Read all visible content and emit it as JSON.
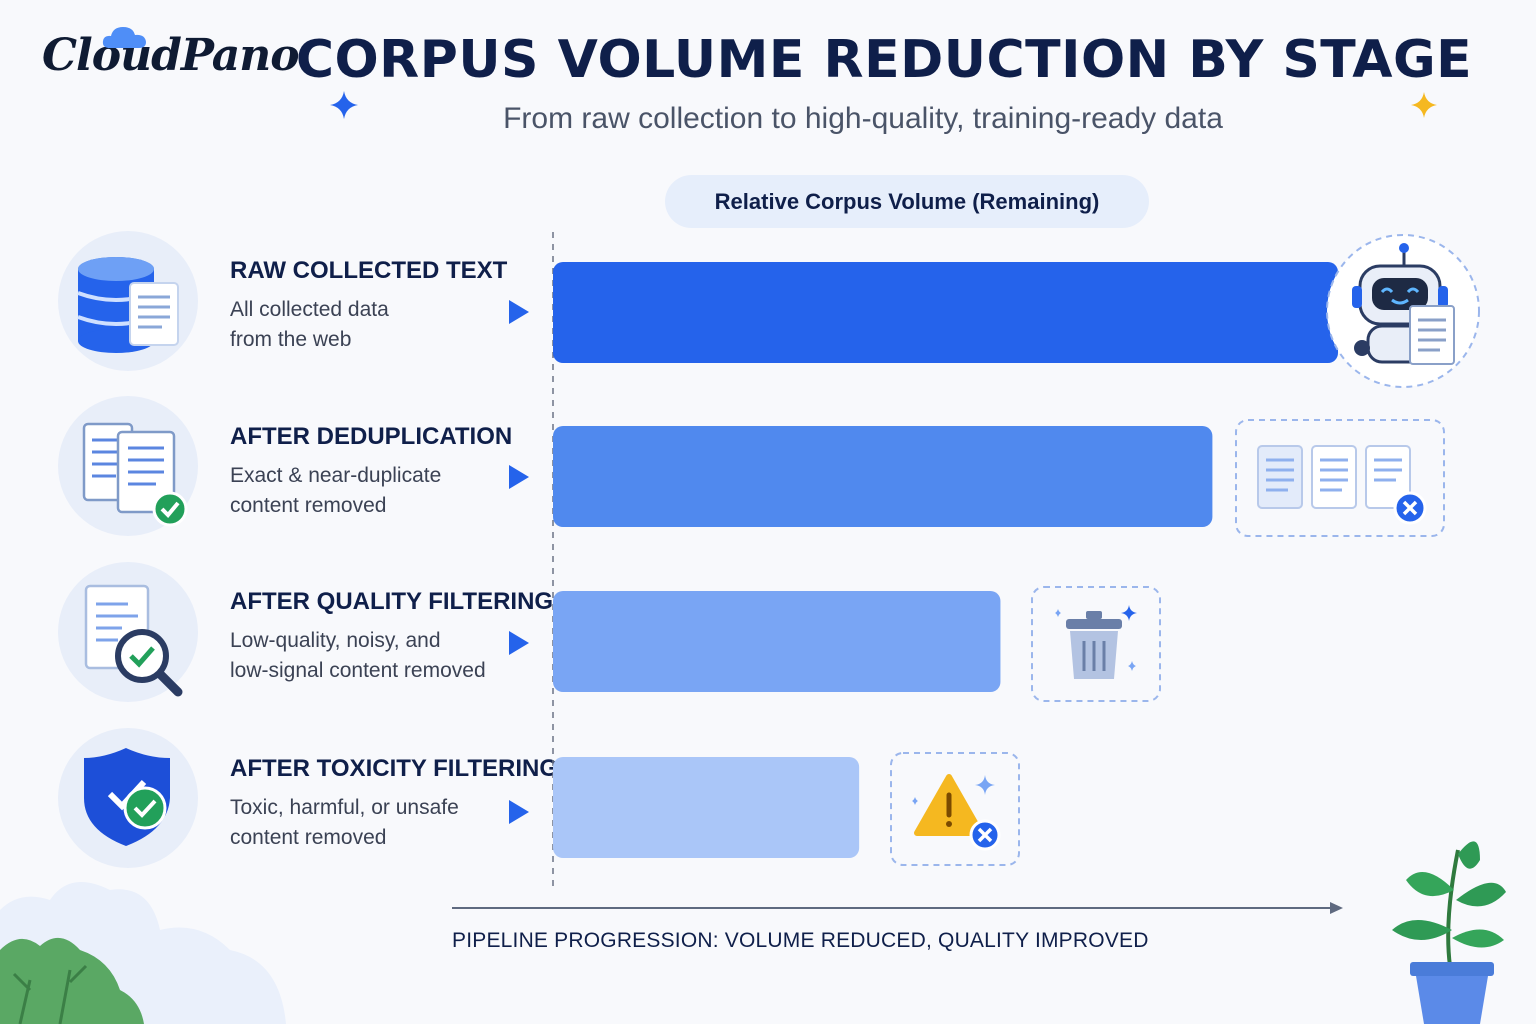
{
  "brand": {
    "name": "CloudPano"
  },
  "header": {
    "title": "CORPUS VOLUME REDUCTION BY STAGE",
    "subtitle": "From raw collection to high-quality, training-ready data"
  },
  "chart_data": {
    "type": "bar",
    "orientation": "horizontal",
    "title": "CORPUS VOLUME REDUCTION BY STAGE",
    "subtitle": "From raw collection to high-quality, training-ready data",
    "value_label": "Relative Corpus Volume (Remaining)",
    "xlabel": "PIPELINE PROGRESSION: VOLUME REDUCED, QUALITY IMPROVED",
    "xlim": [
      0,
      100
    ],
    "categories": [
      "RAW COLLECTED TEXT",
      "AFTER DEDUPLICATION",
      "AFTER QUALITY FILTERING",
      "AFTER TOXICITY FILTERING"
    ],
    "descriptions": [
      [
        "All collected data",
        "from the web"
      ],
      [
        "Exact & near-duplicate",
        "content removed"
      ],
      [
        "Low-quality, noisy, and",
        "low-signal content removed"
      ],
      [
        "Toxic, harmful, or unsafe",
        "content removed"
      ]
    ],
    "values": [
      100,
      84,
      57,
      39
    ],
    "colors": [
      "#2563eb",
      "#5089ee",
      "#79a5f4",
      "#aac6f8"
    ],
    "grid": false,
    "legend": "none"
  },
  "icons": {
    "stages": [
      "database-icon",
      "duplicate-documents-icon",
      "quality-search-icon",
      "shield-check-icon"
    ],
    "decorations": [
      "robot-icon",
      "removed-duplicates-icon",
      "trash-icon",
      "warning-icon"
    ]
  }
}
